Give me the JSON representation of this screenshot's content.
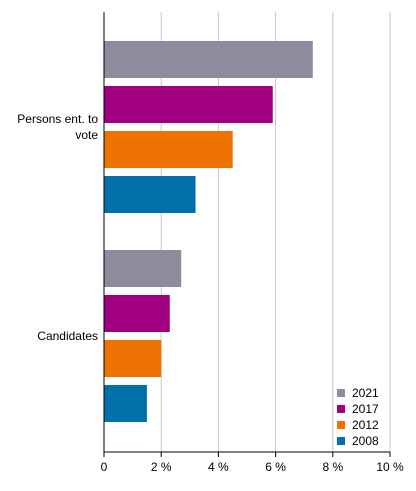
{
  "chart_data": {
    "type": "bar",
    "orientation": "horizontal",
    "categories": [
      "Persons ent. to vote",
      "Candidates"
    ],
    "category_lines": [
      [
        "Persons ent. to",
        "vote"
      ],
      [
        "Candidates"
      ]
    ],
    "series": [
      {
        "name": "2021",
        "color": "#8c8c9e",
        "values": [
          7.3,
          2.7
        ]
      },
      {
        "name": "2017",
        "color": "#a0007f",
        "values": [
          5.9,
          2.3
        ]
      },
      {
        "name": "2012",
        "color": "#ee7203",
        "values": [
          4.5,
          2.0
        ]
      },
      {
        "name": "2008",
        "color": "#0070aa",
        "values": [
          3.2,
          1.5
        ]
      }
    ],
    "xlim": [
      0,
      10
    ],
    "xticks": [
      0,
      2,
      4,
      6,
      8,
      10
    ],
    "xtick_labels": [
      "0",
      "2 %",
      "4 %",
      "6 %",
      "8 %",
      "10 %"
    ],
    "grid": true,
    "legend_position": "bottom-right",
    "legend_order": [
      "2021",
      "2017",
      "2012",
      "2008"
    ],
    "title": "",
    "xlabel": "",
    "ylabel": ""
  }
}
